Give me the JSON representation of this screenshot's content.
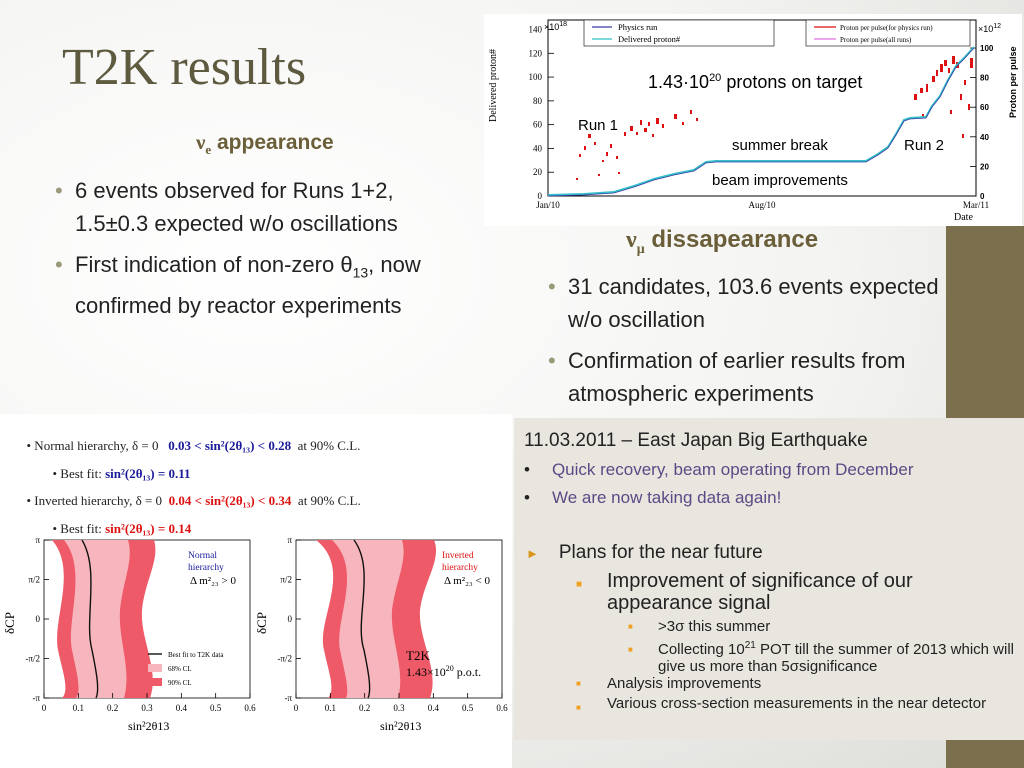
{
  "title": "T2K results",
  "left": {
    "heading_sym": "ν",
    "heading_sub": "e",
    "heading_text": " appearance",
    "bullets": [
      {
        "text": "6 events observed for Runs 1+2, 1.5±0.3 expected w/o oscillations"
      },
      {
        "pre": "First indication of non-zero θ",
        "sub": "13",
        "post": ", now confirmed by reactor experiments"
      }
    ]
  },
  "right": {
    "heading_sym": "ν",
    "heading_sub": "μ",
    "heading_text": " dissapearance",
    "bullets": [
      {
        "text": "31 candidates, 103.6 events expected w/o oscillation"
      },
      {
        "text": "Confirmation of earlier results from atmospheric experiments"
      }
    ]
  },
  "pot_chart": {
    "multiplier_left": "×10",
    "multiplier_left_exp": "18",
    "multiplier_right": "×10",
    "multiplier_right_exp": "12",
    "ylabel_left": "Delivered proton#",
    "ylabel_right": "Proton per pulse",
    "xlabel": "Date",
    "yticks_left": [
      "0",
      "20",
      "40",
      "60",
      "80",
      "100",
      "120",
      "140"
    ],
    "yticks_right": [
      "0",
      "20",
      "40",
      "60",
      "80",
      "100"
    ],
    "xticks": [
      "Jan/10",
      "Aug/10",
      "Mar/11"
    ],
    "legend_left": [
      "Physics run",
      "Delivered proton#"
    ],
    "legend_right": [
      "Proton per pulse(for physics run)",
      "Proton per pulse(all runs)"
    ],
    "annot_pot": "1.43·10",
    "annot_pot_exp": "20",
    "annot_pot_post": " protons on target",
    "annot_run1": "Run 1",
    "annot_run2": "Run 2",
    "annot_summer": "summer break",
    "annot_beam": "beam improvements",
    "colors": {
      "physics": "#3a3aa8",
      "delivered": "#33c0c8",
      "ppp": "#dd1111",
      "ppp_all": "#e070e0"
    }
  },
  "results": {
    "line1_pre": "• Normal hierarchy, δ = 0   ",
    "line1_val": "0.03 < sin²(2θ₁₃) < 0.28",
    "line1_post": "  at 90% C.L.",
    "line2_pre": "• Best fit: ",
    "line2_val": "sin²(2θ₁₃) = 0.11",
    "line3_pre": "• Inverted hierarchy, δ = 0  ",
    "line3_val": "0.04 < sin²(2θ₁₃) < 0.34",
    "line3_post": "  at 90% C.L.",
    "line4_pre": "• Best fit: ",
    "line4_val": "sin²(2θ₁₃) = 0.14",
    "blue": "#1a1a9a",
    "red": "#dd1111"
  },
  "contour_plots": {
    "yticks": [
      "π",
      "π/2",
      "0",
      "-π/2",
      "-π"
    ],
    "xticks": [
      "0",
      "0.1",
      "0.2",
      "0.3",
      "0.4",
      "0.5",
      "0.6"
    ],
    "ylabel": "δCP",
    "xlabel": "sin²2θ13",
    "left_label1": "Normal",
    "left_label2": "hierarchy",
    "left_label3": "Δ m²₂₃ > 0",
    "right_label1": "Inverted",
    "right_label2": "hierarchy",
    "right_label3": "Δ m²₂₃ < 0",
    "legend": [
      "Best fit to T2K data",
      "68% CL",
      "90% CL"
    ],
    "t2k_label": "T2K",
    "pot_label": "1.43×10",
    "pot_exp": "20",
    "pot_post": " p.o.t.",
    "colors": {
      "cl68": "#f7b6bd",
      "cl90": "#ef5a68",
      "bestfit": "#111111"
    }
  },
  "note": {
    "title": "11.03.2011 – East Japan Big Earthquake",
    "items": [
      "Quick recovery, beam operating from December",
      "We are now taking data again!"
    ],
    "plans_label": "Plans for the near future",
    "sub1": "Improvement of significance of our appearance signal",
    "sub1_items": [
      {
        "pre": ">3σ this summer"
      },
      {
        "pre": "Collecting 10",
        "sup": "21",
        "post": " POT till the summer of 2013 which will give us more than 5σsignificance"
      }
    ],
    "sub2": "Analysis improvements",
    "sub3": "Various cross-section measurements in the near detector"
  }
}
